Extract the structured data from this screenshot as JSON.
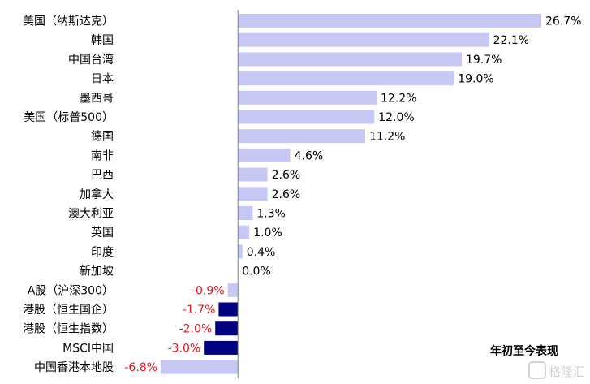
{
  "chart_data": {
    "type": "bar",
    "orientation": "horizontal",
    "categories": [
      "美国（纳斯达克）",
      "韩国",
      "中国台湾",
      "日本",
      "墨西哥",
      "美国（标普500）",
      "德国",
      "南非",
      "巴西",
      "加拿大",
      "澳大利亚",
      "英国",
      "印度",
      "新加坡",
      "A股（沪深300）",
      "港股（恒生国企）",
      "港股（恒生指数）",
      "MSCI中国",
      "中国香港本地股"
    ],
    "values": [
      26.7,
      22.1,
      19.7,
      19.0,
      12.2,
      12.0,
      11.2,
      4.6,
      2.6,
      2.6,
      1.3,
      1.0,
      0.4,
      0.0,
      -0.9,
      -1.7,
      -2.0,
      -3.0,
      -6.8
    ],
    "value_labels": [
      "26.7%",
      "22.1%",
      "19.7%",
      "19.0%",
      "12.2%",
      "12.0%",
      "11.2%",
      "4.6%",
      "2.6%",
      "2.6%",
      "1.3%",
      "1.0%",
      "0.4%",
      "0.0%",
      "-0.9%",
      "-1.7%",
      "-2.0%",
      "-3.0%",
      "-6.8%"
    ],
    "highlighted": [
      false,
      false,
      false,
      false,
      false,
      false,
      false,
      false,
      false,
      false,
      false,
      false,
      false,
      false,
      false,
      true,
      true,
      true,
      false
    ],
    "series": [
      {
        "name": "年初至今表现"
      }
    ],
    "xlim": [
      -6.8,
      26.7
    ],
    "grid": false,
    "legend_position": "bottom-right"
  },
  "legend_text": "年初至今表现",
  "watermark_text": "格隆汇",
  "colors": {
    "bar": "#c8c8f5",
    "highlight_bar": "#000080",
    "negative_label": "#e8141b",
    "positive_label": "#000000",
    "axis": "#808080"
  }
}
